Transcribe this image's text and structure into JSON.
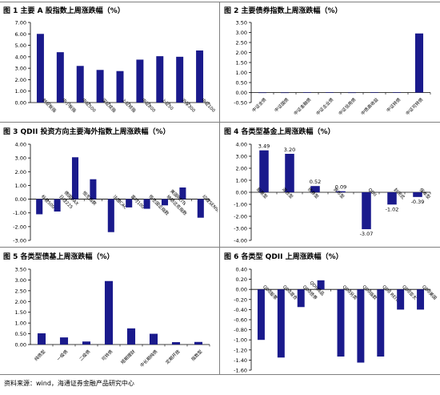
{
  "source_text": "资料来源：wind，海通证券金融产品研究中心",
  "chart_data": [
    {
      "id": "c1",
      "type": "bar",
      "title": "图 1 主要 A 股指数上周涨跌幅（%）",
      "categories": [
        "创业板指",
        "中小板指",
        "中证500",
        "深证成指",
        "上证综指",
        "中证800",
        "上证50",
        "沪深300",
        "中证100"
      ],
      "values": [
        6.0,
        4.4,
        3.2,
        2.85,
        2.75,
        3.75,
        4.05,
        4.0,
        4.55
      ],
      "ylim": [
        0,
        7
      ],
      "yticks": [
        "0.00",
        "1.00",
        "2.00",
        "3.00",
        "4.00",
        "5.00",
        "6.00",
        "7.00"
      ],
      "data_labels": [],
      "bar_color": "#1a1a8c"
    },
    {
      "id": "c2",
      "type": "bar",
      "title": "图 2 主要债券指数上周涨跌幅（%）",
      "categories": [
        "中证全债",
        "中证国债",
        "中证金融债",
        "中证企业债",
        "中证信用债",
        "中债高收益",
        "中证转债",
        "中证可转债"
      ],
      "values": [
        0.0,
        0.0,
        0.01,
        0.01,
        0.0,
        0.01,
        0.01,
        2.95
      ],
      "ylim": [
        -0.5,
        3.5
      ],
      "yticks": [
        "-0.50",
        "0.00",
        "0.50",
        "1.00",
        "1.50",
        "2.00",
        "2.50",
        "3.00",
        "3.50"
      ],
      "data_labels": [],
      "bar_color": "#1a1a8c"
    },
    {
      "id": "c3",
      "type": "bar",
      "title": "图 3 QDII 投资方向主要海外指数上周涨跌幅（%）",
      "categories": [
        "标普500",
        "日经225",
        "德国DAX",
        "恒生指数",
        "法国CAC",
        "富时100",
        "恒生国企指数",
        "纳斯达克指数",
        "美国REITs",
        "印度SENSEX"
      ],
      "values": [
        -1.1,
        -0.9,
        3.05,
        1.45,
        -2.4,
        -0.6,
        -0.7,
        -0.45,
        0.85,
        -1.35
      ],
      "ylim": [
        -3,
        4
      ],
      "yticks": [
        "-3.00",
        "-2.00",
        "-1.00",
        "0.00",
        "1.00",
        "2.00",
        "3.00",
        "4.00"
      ],
      "data_labels": [],
      "bar_color": "#1a1a8c"
    },
    {
      "id": "c4",
      "type": "bar",
      "title": "图 4 各类型基金上周涨跌幅（%）",
      "categories": [
        "股票型",
        "混合型",
        "债券型",
        "货币型",
        "QDII",
        "封闭式",
        "保本型"
      ],
      "values": [
        3.49,
        3.2,
        0.52,
        0.09,
        -3.07,
        -1.02,
        -0.39
      ],
      "ylim": [
        -4,
        4
      ],
      "yticks": [
        "-4.00",
        "-3.00",
        "-2.00",
        "-1.00",
        "0.00",
        "1.00",
        "2.00",
        "3.00",
        "4.00"
      ],
      "data_labels": [
        "3.49",
        "3.20",
        "0.52",
        "0.09",
        "-3.07",
        "-1.02",
        "-0.39"
      ],
      "bar_color": "#1a1a8c"
    },
    {
      "id": "c5",
      "type": "bar",
      "title": "图 5 各类型债基上周涨跌幅（%）",
      "categories": [
        "纯债型",
        "一级债",
        "二级债",
        "可转债",
        "短期理财",
        "中长期纯债",
        "定期开放",
        "指数型"
      ],
      "values": [
        0.52,
        0.33,
        0.14,
        2.95,
        0.75,
        0.5,
        0.11,
        0.12
      ],
      "ylim": [
        0,
        3.5
      ],
      "yticks": [
        "0.00",
        "0.50",
        "1.00",
        "1.50",
        "2.00",
        "2.50",
        "3.00",
        "3.50"
      ],
      "data_labels": [],
      "bar_color": "#1a1a8c"
    },
    {
      "id": "c6",
      "type": "bar",
      "title": "图 6 各类型 QDII 上周涨跌幅（%）",
      "categories": [
        "QDII股票",
        "QDII混合",
        "QDII债券",
        "QDII商品",
        "QDII另类",
        "QDII指数",
        "QDII REITs",
        "QDII亚太",
        "QDII美国"
      ],
      "values": [
        -1.0,
        -1.35,
        -0.35,
        0.18,
        -1.33,
        -1.45,
        -1.33,
        -0.4,
        -0.4
      ],
      "ylim": [
        -1.6,
        0.4
      ],
      "yticks": [
        "-1.60",
        "-1.40",
        "-1.20",
        "-1.00",
        "-0.80",
        "-0.60",
        "-0.40",
        "-0.20",
        "0.00",
        "0.20",
        "0.40"
      ],
      "data_labels": [],
      "bar_color": "#1a1a8c"
    }
  ]
}
